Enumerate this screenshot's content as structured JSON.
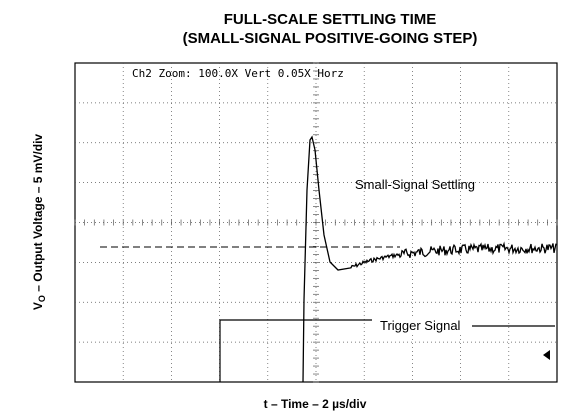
{
  "title": [
    "FULL-SCALE SETTLING TIME",
    "(SMALL-SIGNAL POSITIVE-GOING STEP)"
  ],
  "screen": {
    "header": "Ch2 Zoom: 100.0X Vert   0.05X Horz",
    "annotations": [
      "Small-Signal Settling",
      "Trigger Signal"
    ]
  },
  "x_axis_label": "t – Time – 2 µs/div",
  "y_axis_label": {
    "symbol": "V",
    "subscript": "O",
    "text": " – Output Voltage – 5 mV/div"
  }
}
